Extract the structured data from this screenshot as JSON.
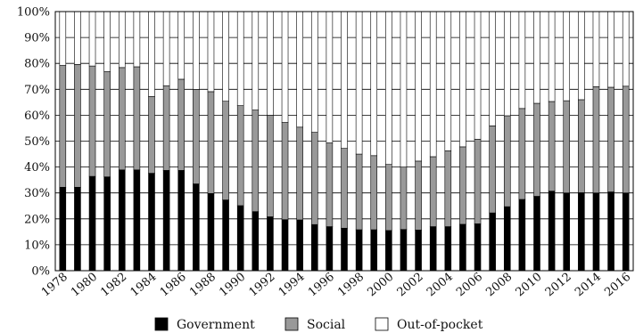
{
  "chart_data": {
    "type": "bar",
    "stacked": true,
    "normalized": true,
    "title": "",
    "xlabel": "",
    "ylabel": "",
    "ylim": [
      0,
      100
    ],
    "y_ticks": [
      "0%",
      "10%",
      "20%",
      "30%",
      "40%",
      "50%",
      "60%",
      "70%",
      "80%",
      "90%",
      "100%"
    ],
    "grid": "horizontal",
    "legend_position": "bottom",
    "categories": [
      "1978",
      "1979",
      "1980",
      "1981",
      "1982",
      "1983",
      "1984",
      "1985",
      "1986",
      "1987",
      "1988",
      "1989",
      "1990",
      "1991",
      "1992",
      "1993",
      "1994",
      "1995",
      "1996",
      "1997",
      "1998",
      "1999",
      "2000",
      "2001",
      "2002",
      "2003",
      "2004",
      "2005",
      "2006",
      "2007",
      "2008",
      "2009",
      "2010",
      "2011",
      "2012",
      "2013",
      "2014",
      "2015",
      "2016"
    ],
    "x_tick_labels": [
      "1978",
      "1980",
      "1982",
      "1984",
      "1986",
      "1988",
      "1990",
      "1992",
      "1994",
      "1996",
      "1998",
      "2000",
      "2002",
      "2004",
      "2006",
      "2008",
      "2010",
      "2012",
      "2014",
      "2016"
    ],
    "series": [
      {
        "name": "Government",
        "color": "#000000",
        "values": [
          32.2,
          32.2,
          36.4,
          36.2,
          38.9,
          38.9,
          37.6,
          38.7,
          38.7,
          33.5,
          29.8,
          27.3,
          25.1,
          22.8,
          20.8,
          19.7,
          19.6,
          17.8,
          17.0,
          16.4,
          15.8,
          15.8,
          15.5,
          15.9,
          15.7,
          17.0,
          17.0,
          17.9,
          18.1,
          22.3,
          24.7,
          27.5,
          28.7,
          30.7,
          30.0,
          30.1,
          30.0,
          30.4,
          30.0
        ]
      },
      {
        "name": "Social",
        "color": "#999999",
        "values": [
          47.0,
          47.4,
          42.6,
          40.6,
          39.5,
          39.8,
          29.6,
          32.7,
          35.2,
          36.5,
          39.3,
          38.1,
          38.6,
          39.2,
          39.2,
          37.5,
          35.8,
          35.6,
          32.3,
          30.8,
          29.2,
          28.6,
          25.5,
          24.1,
          26.6,
          27.0,
          29.3,
          29.9,
          32.6,
          33.6,
          35.1,
          35.1,
          35.9,
          34.6,
          35.6,
          35.9,
          41.0,
          40.4,
          41.2
        ]
      },
      {
        "name": "Out-of-pocket",
        "color": "#ffffff",
        "values": [
          20.8,
          20.4,
          21.0,
          23.2,
          21.6,
          21.3,
          32.8,
          28.6,
          26.1,
          30.0,
          30.9,
          34.6,
          36.3,
          38.0,
          40.0,
          42.8,
          44.6,
          46.6,
          50.7,
          52.8,
          55.0,
          55.6,
          59.0,
          60.0,
          57.7,
          56.0,
          53.7,
          52.2,
          49.3,
          44.1,
          40.2,
          37.4,
          35.4,
          34.7,
          34.4,
          34.0,
          29.0,
          29.2,
          28.8
        ]
      }
    ]
  }
}
